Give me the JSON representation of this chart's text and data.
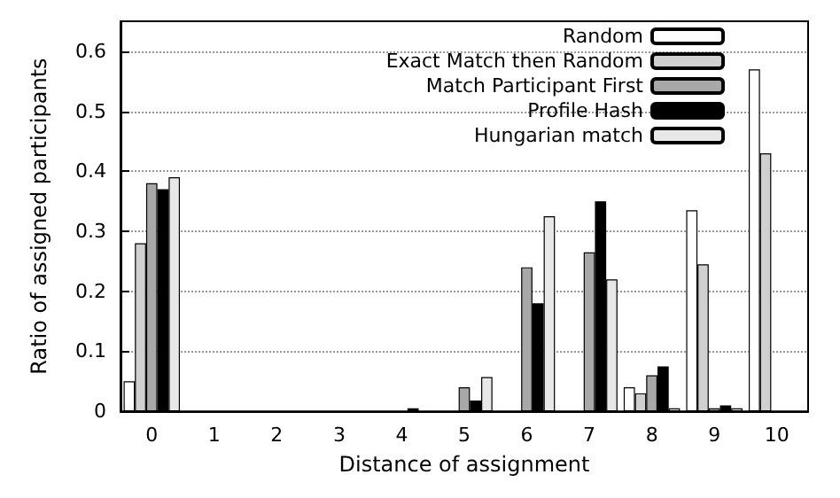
{
  "chart_data": {
    "type": "bar",
    "xlabel": "Distance of assignment",
    "ylabel": "Ratio of assigned participants",
    "categories": [
      "0",
      "1",
      "2",
      "3",
      "4",
      "5",
      "6",
      "7",
      "8",
      "9",
      "10"
    ],
    "series": [
      {
        "name": "Random",
        "color": "#ffffff",
        "values": [
          0.05,
          null,
          null,
          null,
          null,
          null,
          null,
          null,
          0.04,
          0.335,
          0.57
        ]
      },
      {
        "name": "Exact Match then Random",
        "color": "#d0d0d0",
        "values": [
          0.28,
          null,
          null,
          null,
          null,
          null,
          null,
          null,
          0.03,
          0.245,
          0.43
        ]
      },
      {
        "name": "Match Participant First",
        "color": "#a8a8a8",
        "values": [
          0.38,
          null,
          null,
          null,
          null,
          0.04,
          0.24,
          0.265,
          0.06,
          0.005,
          null
        ]
      },
      {
        "name": "Profile Hash",
        "color": "#000000",
        "values": [
          0.37,
          null,
          null,
          null,
          0.005,
          0.018,
          0.18,
          0.35,
          0.075,
          0.01,
          null
        ]
      },
      {
        "name": "Hungarian match",
        "color": "#e8e8e8",
        "values": [
          0.39,
          null,
          null,
          null,
          null,
          0.057,
          0.325,
          0.22,
          0.005,
          0.005,
          null
        ]
      }
    ],
    "ylim": [
      0,
      0.65
    ],
    "yticks": [
      0,
      0.1,
      0.2,
      0.3,
      0.4,
      0.5,
      0.6
    ],
    "grid": "y",
    "legend": "top right"
  }
}
